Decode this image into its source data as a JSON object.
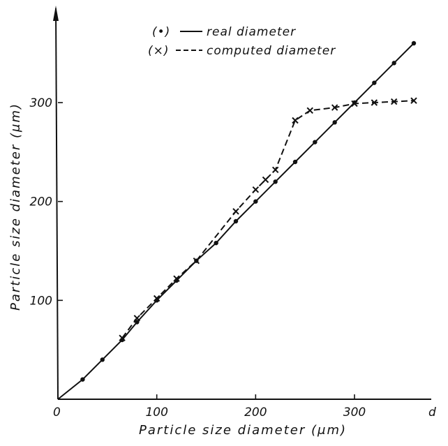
{
  "chart_data": {
    "type": "line",
    "title": "",
    "xlabel": "Particle size diameter (μm)",
    "ylabel": "Particle size diameter (μm)",
    "x_axis_symbol": "d",
    "origin_label": "0",
    "xlim": [
      0,
      380
    ],
    "ylim": [
      0,
      390
    ],
    "x_ticks": [
      100,
      200,
      300
    ],
    "y_ticks": [
      100,
      200,
      300
    ],
    "grid": false,
    "legend_position": "top-center",
    "series": [
      {
        "name": "real diameter",
        "legend_marker": "(•)",
        "line_style": "solid",
        "marker": "dot",
        "x": [
          25,
          45,
          65,
          80,
          100,
          120,
          140,
          160,
          180,
          200,
          220,
          240,
          260,
          280,
          300,
          320,
          340,
          360
        ],
        "y": [
          20,
          40,
          60,
          78,
          100,
          120,
          140,
          158,
          180,
          200,
          220,
          240,
          260,
          280,
          300,
          320,
          340,
          360
        ]
      },
      {
        "name": "computed diameter",
        "legend_marker": "(×)",
        "line_style": "dashed",
        "marker": "x",
        "x": [
          65,
          80,
          100,
          120,
          140,
          180,
          200,
          210,
          220,
          240,
          255,
          280,
          300,
          320,
          340,
          360
        ],
        "y": [
          62,
          82,
          102,
          122,
          140,
          190,
          212,
          222,
          232,
          282,
          292,
          295,
          299,
          300,
          301,
          302
        ]
      }
    ]
  }
}
